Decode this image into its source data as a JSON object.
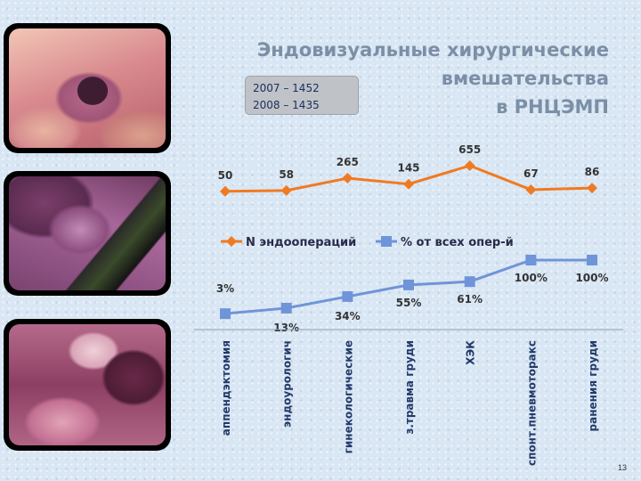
{
  "title": "Эндовизуальные хирургические\nвмешательства\nв РНЦЭМП",
  "stats": [
    "2007 – 1452",
    "2008 – 1435"
  ],
  "page_number": "13",
  "chart_data": {
    "type": "line",
    "categories": [
      "аппендэктомия",
      "эндоурологич",
      "гинекологические",
      "з.травма груди",
      "ХЭК",
      "спонт.пневмоторакс",
      "ранения груди"
    ],
    "series": [
      {
        "name": "N эндоопераций",
        "values": [
          50,
          58,
          265,
          145,
          655,
          67,
          86
        ],
        "labels": [
          "50",
          "58",
          "265",
          "145",
          "655",
          "67",
          "86"
        ],
        "color": "#f07a22",
        "marker": "diamond"
      },
      {
        "name": "% от всех опер-й",
        "values": [
          3,
          13,
          34,
          55,
          61,
          100,
          100
        ],
        "labels": [
          "3%",
          "13%",
          "34%",
          "55%",
          "61%",
          "100%",
          "100%"
        ],
        "color": "#6f94d8",
        "marker": "square"
      }
    ],
    "legend": "middle"
  }
}
